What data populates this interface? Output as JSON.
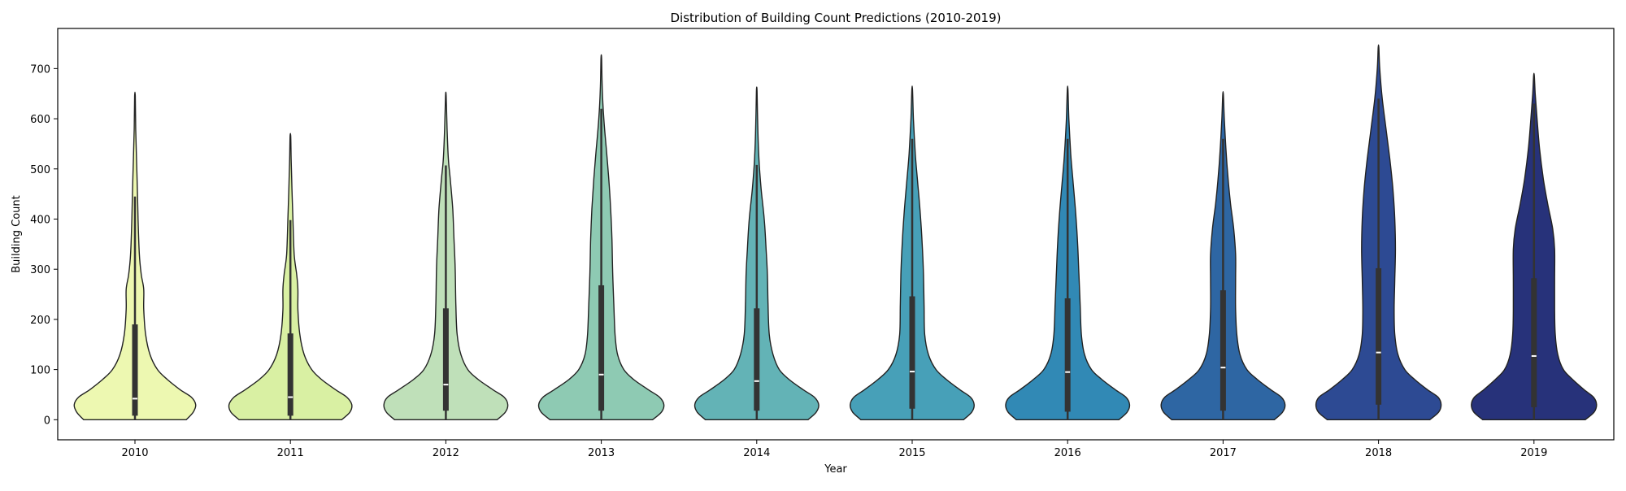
{
  "chart_data": {
    "type": "violin",
    "title": "Distribution of Building Count Predictions (2010-2019)",
    "xlabel": "Year",
    "ylabel": "Building Count",
    "categories": [
      "2010",
      "2011",
      "2012",
      "2013",
      "2014",
      "2015",
      "2016",
      "2017",
      "2018",
      "2019"
    ],
    "ylim": [
      -40,
      780
    ],
    "yticks": [
      0,
      100,
      200,
      300,
      400,
      500,
      600,
      700
    ],
    "grid": false,
    "legend": "none",
    "colors": [
      "#edf8b1",
      "#d9f0a3",
      "#bfe0b9",
      "#8ecab3",
      "#63b3b6",
      "#47a0b8",
      "#3189b5",
      "#2e66a3",
      "#2d4a93",
      "#27327a"
    ],
    "violins": [
      {
        "min": 0,
        "max": 645,
        "median": 42,
        "q1": 8,
        "q3": 190,
        "whisker_high": 445,
        "density": [
          [
            0,
            0.82
          ],
          [
            15,
            0.93
          ],
          [
            30,
            0.97
          ],
          [
            45,
            0.9
          ],
          [
            60,
            0.72
          ],
          [
            80,
            0.52
          ],
          [
            100,
            0.36
          ],
          [
            130,
            0.24
          ],
          [
            170,
            0.17
          ],
          [
            220,
            0.14
          ],
          [
            260,
            0.14
          ],
          [
            290,
            0.1
          ],
          [
            330,
            0.07
          ],
          [
            400,
            0.05
          ],
          [
            450,
            0.04
          ],
          [
            520,
            0.025
          ],
          [
            580,
            0.012
          ],
          [
            645,
            0.005
          ]
        ]
      },
      {
        "min": 0,
        "max": 565,
        "median": 45,
        "q1": 8,
        "q3": 172,
        "whisker_high": 398,
        "density": [
          [
            0,
            0.82
          ],
          [
            15,
            0.95
          ],
          [
            30,
            0.98
          ],
          [
            45,
            0.9
          ],
          [
            60,
            0.72
          ],
          [
            80,
            0.5
          ],
          [
            100,
            0.34
          ],
          [
            130,
            0.22
          ],
          [
            170,
            0.15
          ],
          [
            220,
            0.12
          ],
          [
            260,
            0.12
          ],
          [
            290,
            0.1
          ],
          [
            330,
            0.06
          ],
          [
            400,
            0.04
          ],
          [
            460,
            0.025
          ],
          [
            520,
            0.012
          ],
          [
            565,
            0.005
          ]
        ]
      },
      {
        "min": 0,
        "max": 645,
        "median": 70,
        "q1": 18,
        "q3": 222,
        "whisker_high": 507,
        "density": [
          [
            0,
            0.82
          ],
          [
            15,
            0.95
          ],
          [
            30,
            0.99
          ],
          [
            45,
            0.93
          ],
          [
            60,
            0.75
          ],
          [
            80,
            0.52
          ],
          [
            100,
            0.35
          ],
          [
            130,
            0.24
          ],
          [
            170,
            0.18
          ],
          [
            230,
            0.16
          ],
          [
            300,
            0.15
          ],
          [
            360,
            0.13
          ],
          [
            420,
            0.11
          ],
          [
            480,
            0.07
          ],
          [
            520,
            0.04
          ],
          [
            580,
            0.02
          ],
          [
            645,
            0.005
          ]
        ]
      },
      {
        "min": 0,
        "max": 720,
        "median": 90,
        "q1": 18,
        "q3": 268,
        "whisker_high": 620,
        "density": [
          [
            0,
            0.82
          ],
          [
            15,
            0.96
          ],
          [
            30,
            1.0
          ],
          [
            45,
            0.93
          ],
          [
            60,
            0.75
          ],
          [
            80,
            0.52
          ],
          [
            100,
            0.36
          ],
          [
            130,
            0.26
          ],
          [
            170,
            0.22
          ],
          [
            230,
            0.2
          ],
          [
            300,
            0.18
          ],
          [
            360,
            0.17
          ],
          [
            420,
            0.15
          ],
          [
            480,
            0.12
          ],
          [
            540,
            0.08
          ],
          [
            600,
            0.04
          ],
          [
            660,
            0.015
          ],
          [
            720,
            0.005
          ]
        ]
      },
      {
        "min": 0,
        "max": 655,
        "median": 77,
        "q1": 18,
        "q3": 222,
        "whisker_high": 508,
        "density": [
          [
            0,
            0.82
          ],
          [
            15,
            0.95
          ],
          [
            30,
            0.99
          ],
          [
            45,
            0.92
          ],
          [
            60,
            0.74
          ],
          [
            80,
            0.52
          ],
          [
            100,
            0.36
          ],
          [
            130,
            0.26
          ],
          [
            170,
            0.2
          ],
          [
            230,
            0.18
          ],
          [
            290,
            0.17
          ],
          [
            340,
            0.15
          ],
          [
            400,
            0.12
          ],
          [
            460,
            0.07
          ],
          [
            520,
            0.035
          ],
          [
            590,
            0.015
          ],
          [
            655,
            0.005
          ]
        ]
      },
      {
        "min": 0,
        "max": 658,
        "median": 96,
        "q1": 22,
        "q3": 246,
        "whisker_high": 560,
        "density": [
          [
            0,
            0.82
          ],
          [
            15,
            0.95
          ],
          [
            30,
            0.99
          ],
          [
            45,
            0.93
          ],
          [
            60,
            0.76
          ],
          [
            80,
            0.55
          ],
          [
            100,
            0.38
          ],
          [
            130,
            0.26
          ],
          [
            170,
            0.2
          ],
          [
            230,
            0.19
          ],
          [
            290,
            0.18
          ],
          [
            350,
            0.16
          ],
          [
            410,
            0.13
          ],
          [
            470,
            0.09
          ],
          [
            530,
            0.05
          ],
          [
            600,
            0.02
          ],
          [
            658,
            0.005
          ]
        ]
      },
      {
        "min": 0,
        "max": 658,
        "median": 95,
        "q1": 16,
        "q3": 242,
        "whisker_high": 560,
        "density": [
          [
            0,
            0.82
          ],
          [
            15,
            0.95
          ],
          [
            30,
            0.99
          ],
          [
            45,
            0.93
          ],
          [
            60,
            0.76
          ],
          [
            80,
            0.55
          ],
          [
            100,
            0.38
          ],
          [
            130,
            0.27
          ],
          [
            170,
            0.22
          ],
          [
            230,
            0.2
          ],
          [
            290,
            0.18
          ],
          [
            350,
            0.16
          ],
          [
            410,
            0.13
          ],
          [
            470,
            0.09
          ],
          [
            530,
            0.05
          ],
          [
            600,
            0.02
          ],
          [
            658,
            0.005
          ]
        ]
      },
      {
        "min": 0,
        "max": 648,
        "median": 104,
        "q1": 18,
        "q3": 258,
        "whisker_high": 560,
        "density": [
          [
            0,
            0.82
          ],
          [
            15,
            0.95
          ],
          [
            30,
            0.99
          ],
          [
            45,
            0.93
          ],
          [
            60,
            0.76
          ],
          [
            80,
            0.55
          ],
          [
            100,
            0.38
          ],
          [
            130,
            0.27
          ],
          [
            170,
            0.22
          ],
          [
            220,
            0.2
          ],
          [
            280,
            0.2
          ],
          [
            330,
            0.2
          ],
          [
            380,
            0.17
          ],
          [
            430,
            0.12
          ],
          [
            480,
            0.08
          ],
          [
            540,
            0.045
          ],
          [
            600,
            0.02
          ],
          [
            648,
            0.005
          ]
        ]
      },
      {
        "min": 0,
        "max": 742,
        "median": 134,
        "q1": 30,
        "q3": 302,
        "whisker_high": 640,
        "density": [
          [
            0,
            0.82
          ],
          [
            15,
            0.96
          ],
          [
            30,
            1.0
          ],
          [
            45,
            0.95
          ],
          [
            60,
            0.78
          ],
          [
            80,
            0.58
          ],
          [
            100,
            0.42
          ],
          [
            130,
            0.31
          ],
          [
            170,
            0.26
          ],
          [
            220,
            0.25
          ],
          [
            280,
            0.26
          ],
          [
            340,
            0.27
          ],
          [
            400,
            0.26
          ],
          [
            460,
            0.23
          ],
          [
            520,
            0.18
          ],
          [
            580,
            0.12
          ],
          [
            640,
            0.06
          ],
          [
            700,
            0.02
          ],
          [
            742,
            0.005
          ]
        ]
      },
      {
        "min": 0,
        "max": 686,
        "median": 127,
        "q1": 25,
        "q3": 282,
        "whisker_high": 630,
        "density": [
          [
            0,
            0.82
          ],
          [
            15,
            0.96
          ],
          [
            30,
            1.0
          ],
          [
            45,
            0.95
          ],
          [
            60,
            0.8
          ],
          [
            80,
            0.62
          ],
          [
            100,
            0.47
          ],
          [
            130,
            0.38
          ],
          [
            170,
            0.34
          ],
          [
            220,
            0.33
          ],
          [
            280,
            0.33
          ],
          [
            340,
            0.33
          ],
          [
            380,
            0.3
          ],
          [
            430,
            0.22
          ],
          [
            480,
            0.15
          ],
          [
            540,
            0.09
          ],
          [
            600,
            0.05
          ],
          [
            650,
            0.02
          ],
          [
            686,
            0.005
          ]
        ]
      }
    ]
  }
}
